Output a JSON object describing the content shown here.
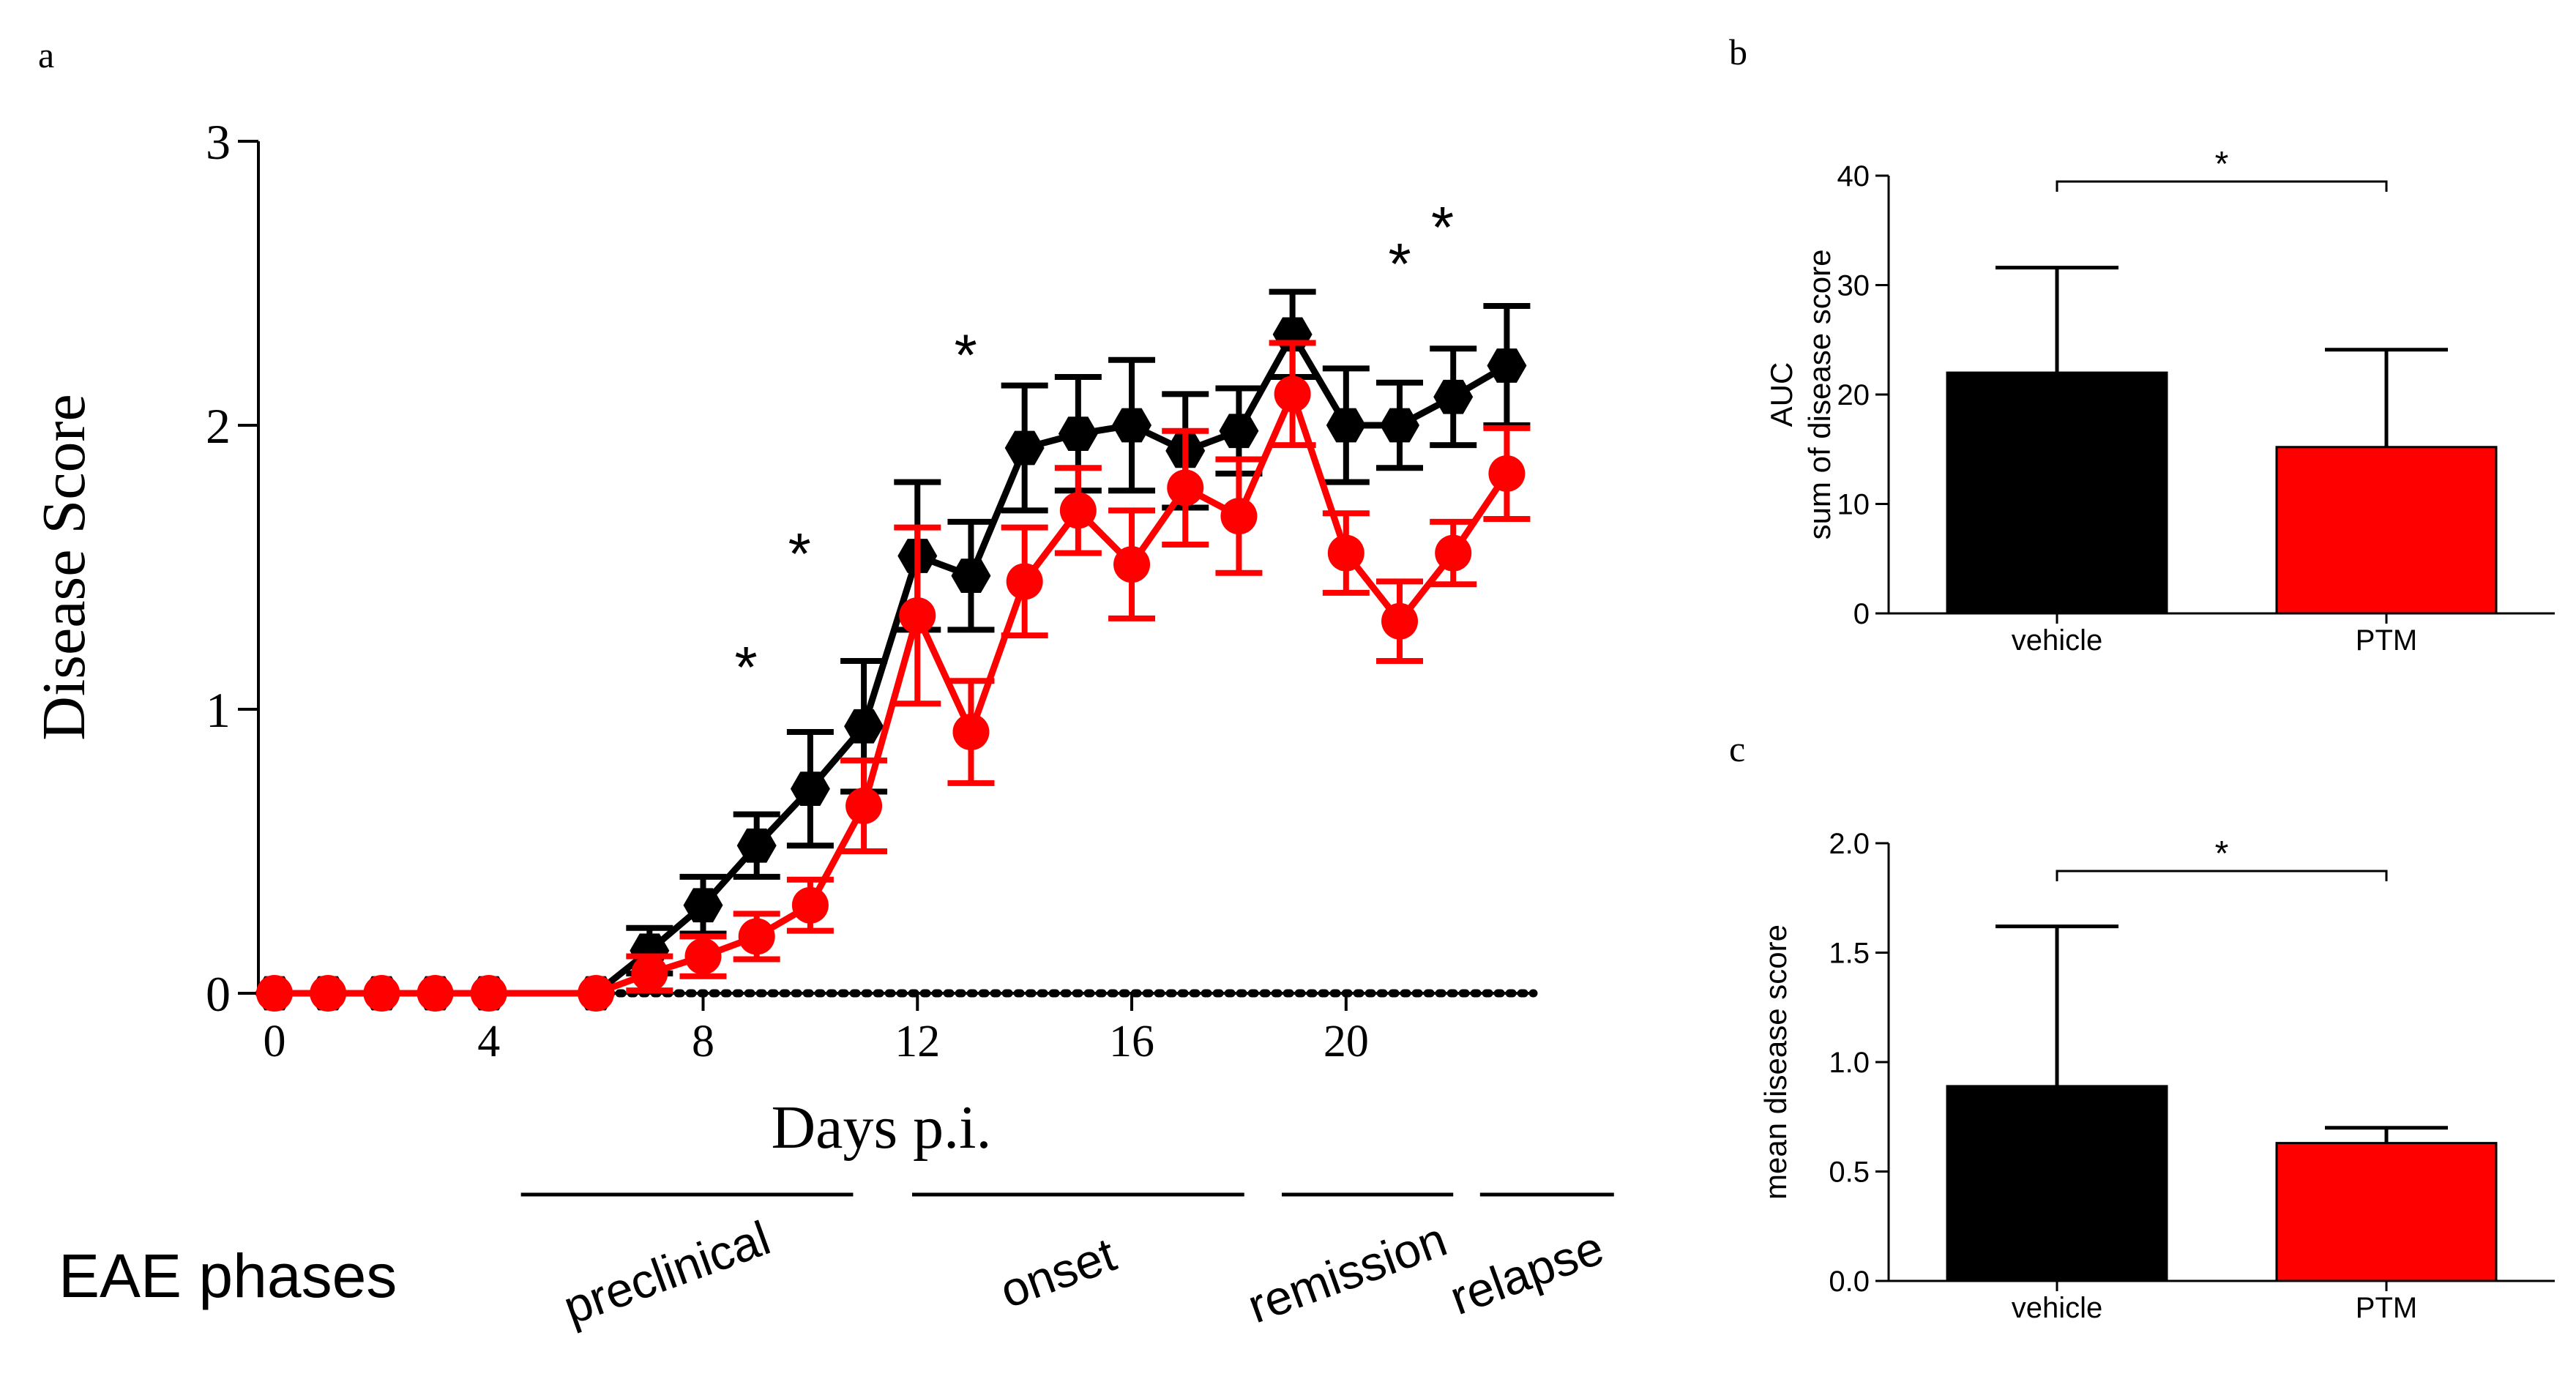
{
  "colors": {
    "vehicle": "#000000",
    "ptm": "#ff0000",
    "axis": "#000000"
  },
  "chart_data": [
    {
      "panel": "a",
      "type": "line",
      "xlabel": "Days p.i.",
      "ylabel": "Disease Score",
      "xlim": [
        -0.3,
        23.5
      ],
      "ylim": [
        0,
        3
      ],
      "xticks": [
        0,
        4,
        8,
        12,
        16,
        20
      ],
      "yticks": [
        0,
        1,
        2,
        3
      ],
      "x_tick_labels": [
        "0",
        "4",
        "8",
        "12",
        "16",
        "20"
      ],
      "y_tick_labels": [
        "0",
        "1",
        "2",
        "3"
      ],
      "series": [
        {
          "name": "vehicle",
          "marker": "hexagon",
          "x": [
            0,
            1,
            2,
            3,
            4,
            6,
            7,
            8,
            9,
            10,
            11,
            12,
            13,
            14,
            15,
            16,
            17,
            18,
            19,
            20,
            21,
            22,
            23
          ],
          "y": [
            0,
            0,
            0,
            0,
            0,
            0,
            0.15,
            0.31,
            0.52,
            0.72,
            0.94,
            1.54,
            1.47,
            1.92,
            1.97,
            2.0,
            1.91,
            1.98,
            2.32,
            2.0,
            2.0,
            2.1,
            2.21
          ],
          "err": [
            0,
            0,
            0,
            0,
            0,
            0,
            0.08,
            0.1,
            0.11,
            0.2,
            0.23,
            0.26,
            0.19,
            0.22,
            0.2,
            0.23,
            0.2,
            0.15,
            0.15,
            0.2,
            0.15,
            0.17,
            0.21
          ]
        },
        {
          "name": "PTM",
          "marker": "circle",
          "x": [
            0,
            1,
            2,
            3,
            4,
            6,
            7,
            8,
            9,
            10,
            11,
            12,
            13,
            14,
            15,
            16,
            17,
            18,
            19,
            20,
            21,
            22,
            23
          ],
          "y": [
            0,
            0,
            0,
            0,
            0,
            0,
            0.07,
            0.13,
            0.2,
            0.31,
            0.66,
            1.33,
            0.92,
            1.45,
            1.7,
            1.51,
            1.78,
            1.68,
            2.11,
            1.55,
            1.31,
            1.55,
            1.83
          ],
          "err": [
            0,
            0,
            0,
            0,
            0,
            0,
            0.06,
            0.07,
            0.08,
            0.09,
            0.16,
            0.31,
            0.18,
            0.19,
            0.15,
            0.19,
            0.2,
            0.2,
            0.18,
            0.14,
            0.14,
            0.11,
            0.16
          ]
        }
      ],
      "annotations": [
        {
          "text": "*",
          "x": 8.8,
          "y": 1.18
        },
        {
          "text": "*",
          "x": 9.8,
          "y": 1.58
        },
        {
          "text": "*",
          "x": 12.9,
          "y": 2.28
        },
        {
          "text": "*",
          "x": 21.0,
          "y": 2.6
        },
        {
          "text": "*",
          "x": 21.8,
          "y": 2.73
        }
      ],
      "phases": {
        "label": "EAE phases",
        "items": [
          {
            "label": "preclinical",
            "start": 4.6,
            "end": 10.8
          },
          {
            "label": "onset",
            "start": 11.9,
            "end": 18.1
          },
          {
            "label": "remission",
            "start": 18.8,
            "end": 22.0
          },
          {
            "label": "relapse",
            "start": 22.5,
            "end": 25.0
          }
        ]
      }
    },
    {
      "panel": "b",
      "type": "bar",
      "categories": [
        "vehicle",
        "PTM"
      ],
      "values": [
        22.0,
        15.2
      ],
      "err": [
        9.6,
        8.9
      ],
      "ylabel_lines": [
        "AUC",
        "sum of disease score"
      ],
      "ylim": [
        0,
        40
      ],
      "yticks": [
        0,
        10,
        20,
        30,
        40
      ],
      "y_tick_labels": [
        "0",
        "10",
        "20",
        "30",
        "40"
      ],
      "significance": "*"
    },
    {
      "panel": "c",
      "type": "bar",
      "categories": [
        "vehicle",
        "PTM"
      ],
      "values": [
        0.89,
        0.63
      ],
      "err": [
        0.73,
        0.07
      ],
      "ylabel_lines": [
        "mean disease score"
      ],
      "ylim": [
        0,
        2.0
      ],
      "yticks": [
        0,
        0.5,
        1.0,
        1.5,
        2.0
      ],
      "y_tick_labels": [
        "0.0",
        "0.5",
        "1.0",
        "1.5",
        "2.0"
      ],
      "significance": "*"
    }
  ]
}
